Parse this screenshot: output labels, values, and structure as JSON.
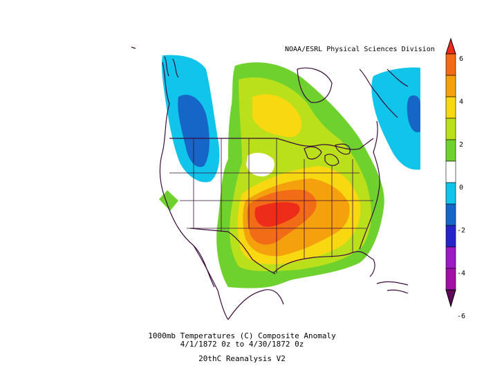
{
  "source_credit": "NOAA/ESRL Physical Sciences Division",
  "caption": {
    "line1": "1000mb Temperatures (C)   Composite Anomaly",
    "line2": "4/1/1872 0z  to 4/30/1872 0z",
    "line3": "20thC Reanalysis V2"
  },
  "colorbar": {
    "ticks": [
      "6",
      "4",
      "2",
      "0",
      "-2",
      "-4",
      "-6"
    ],
    "colors": {
      "gt6": "#ee2c1a",
      "5_6": "#f26b16",
      "4_5": "#f4a10d",
      "3_4": "#f8d810",
      "2_3": "#b9e01b",
      "1_2": "#6fd12e",
      "0": "#ffffff",
      "m1_m2": "#10c4ea",
      "m2_m3": "#1666c7",
      "m3_m4": "#2424c8",
      "m4_m5": "#9d1bc2",
      "m5_m6": "#a10fa6",
      "lt_m6": "#5e0a55"
    }
  },
  "map": {
    "region": "North America",
    "outline_color": "#3a0b3a"
  }
}
